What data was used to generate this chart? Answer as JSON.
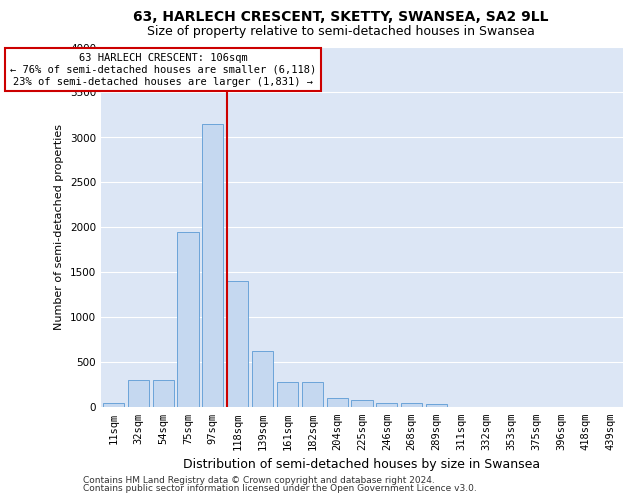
{
  "title": "63, HARLECH CRESCENT, SKETTY, SWANSEA, SA2 9LL",
  "subtitle": "Size of property relative to semi-detached houses in Swansea",
  "xlabel": "Distribution of semi-detached houses by size in Swansea",
  "ylabel": "Number of semi-detached properties",
  "footnote1": "Contains HM Land Registry data © Crown copyright and database right 2024.",
  "footnote2": "Contains public sector information licensed under the Open Government Licence v3.0.",
  "annotation_line1": "63 HARLECH CRESCENT: 106sqm",
  "annotation_line2": "← 76% of semi-detached houses are smaller (6,118)",
  "annotation_line3": "23% of semi-detached houses are larger (1,831) →",
  "categories": [
    "11sqm",
    "32sqm",
    "54sqm",
    "75sqm",
    "97sqm",
    "118sqm",
    "139sqm",
    "161sqm",
    "182sqm",
    "204sqm",
    "225sqm",
    "246sqm",
    "268sqm",
    "289sqm",
    "311sqm",
    "332sqm",
    "353sqm",
    "375sqm",
    "396sqm",
    "418sqm",
    "439sqm"
  ],
  "values": [
    50,
    300,
    300,
    1950,
    3150,
    1400,
    625,
    275,
    275,
    100,
    75,
    50,
    50,
    30,
    5,
    5,
    5,
    5,
    5,
    5,
    5
  ],
  "bar_color": "#c5d8f0",
  "bar_edge_color": "#5b9bd5",
  "red_line_x": 4.57,
  "background_color": "#ffffff",
  "plot_bg_color": "#dce6f5",
  "grid_color": "#ffffff",
  "ylim": [
    0,
    4000
  ],
  "yticks": [
    0,
    500,
    1000,
    1500,
    2000,
    2500,
    3000,
    3500,
    4000
  ],
  "annotation_box_facecolor": "#ffffff",
  "annotation_box_edgecolor": "#cc0000",
  "red_line_color": "#cc0000",
  "title_fontsize": 10,
  "subtitle_fontsize": 9,
  "xlabel_fontsize": 9,
  "ylabel_fontsize": 8,
  "tick_fontsize": 7.5,
  "annot_fontsize": 7.5,
  "footnote_fontsize": 6.5
}
